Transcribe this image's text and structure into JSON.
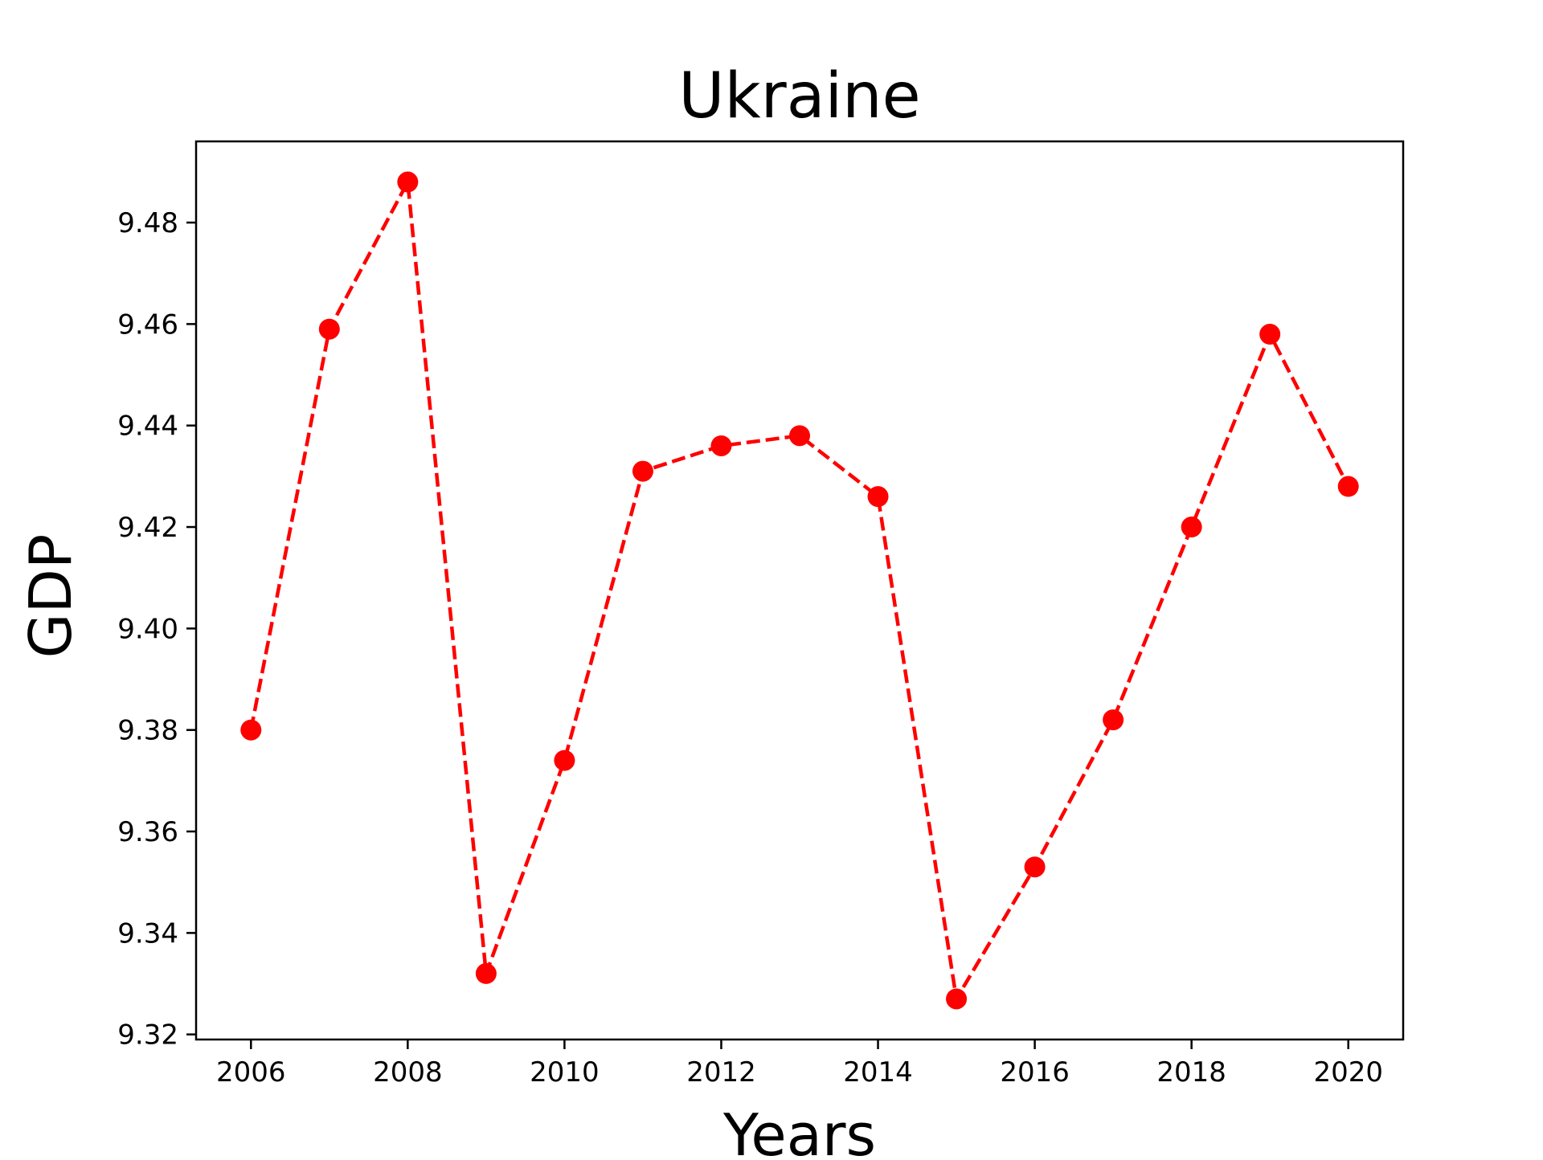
{
  "chart_data": {
    "type": "line",
    "title": "Ukraine",
    "xlabel": "Years",
    "ylabel": "GDP",
    "x": [
      2006,
      2007,
      2008,
      2009,
      2010,
      2011,
      2012,
      2013,
      2014,
      2015,
      2016,
      2017,
      2018,
      2019,
      2020
    ],
    "series": [
      {
        "values": [
          9.38,
          9.459,
          9.488,
          9.332,
          9.374,
          9.431,
          9.436,
          9.438,
          9.426,
          9.327,
          9.353,
          9.382,
          9.42,
          9.458,
          9.428
        ]
      }
    ],
    "xlim": [
      2005.3,
      2020.7
    ],
    "ylim": [
      9.319,
      9.496
    ],
    "xticks": [
      2006,
      2008,
      2010,
      2012,
      2014,
      2016,
      2018,
      2020
    ],
    "yticks": [
      9.32,
      9.34,
      9.36,
      9.38,
      9.4,
      9.42,
      9.44,
      9.46,
      9.48
    ],
    "ytick_labels": [
      "9.32",
      "9.34",
      "9.36",
      "9.38",
      "9.40",
      "9.42",
      "9.44",
      "9.46",
      "9.48"
    ],
    "line_style": "dashed",
    "marker": "circle",
    "color": "#ff0000",
    "grid": false,
    "legend": false
  }
}
